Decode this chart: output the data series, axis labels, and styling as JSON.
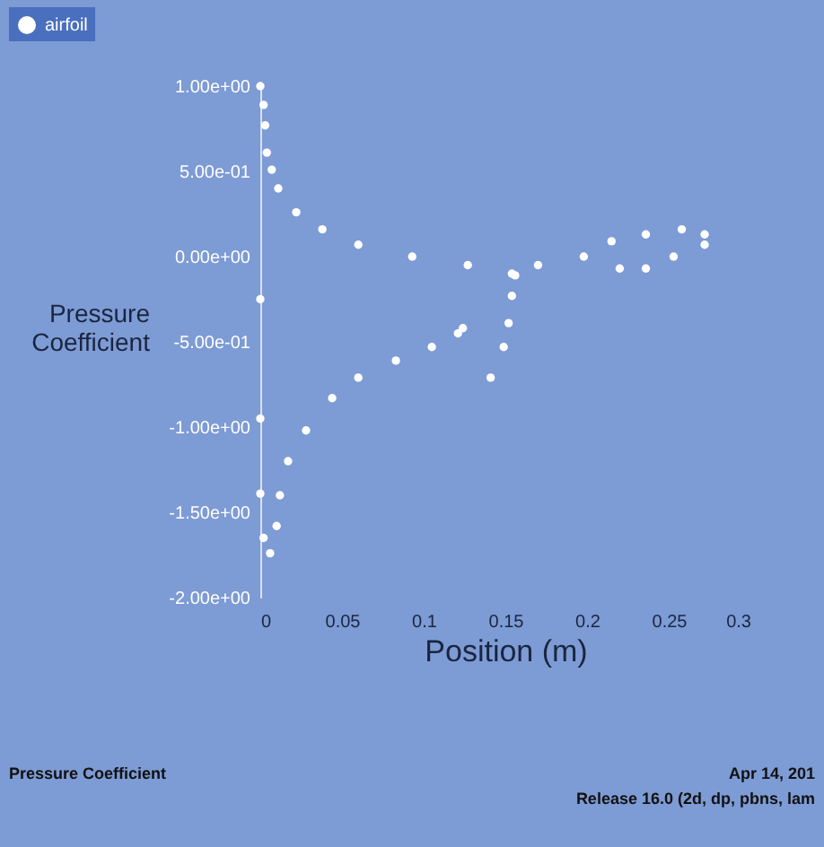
{
  "chart_data": {
    "type": "scatter",
    "xlabel": "Position (m)",
    "ylabel": "Pressure Coefficient",
    "annotations": [
      "Pressure Coefficient",
      "Apr 14, 201",
      "Release 16.0 (2d, dp, pbns, lam"
    ],
    "xlim": [
      0,
      0.3
    ],
    "ylim": [
      -2,
      1
    ],
    "xticks": [
      0,
      0.05,
      0.1,
      0.15,
      0.2,
      0.25,
      0.3
    ],
    "yticks": [
      {
        "value": 1,
        "label": "1.00e+00"
      },
      {
        "value": 0.5,
        "label": "5.00e-01"
      },
      {
        "value": 0,
        "label": "0.00e+00"
      },
      {
        "value": -0.5,
        "label": "-5.00e-01"
      },
      {
        "value": -1,
        "label": "-1.00e+00"
      },
      {
        "value": -1.5,
        "label": "-1.50e+00"
      },
      {
        "value": -2,
        "label": "-2.00e+00"
      }
    ],
    "grid": false,
    "legend": "top left",
    "marker": "circle",
    "series": [
      {
        "name": "airfoil",
        "color": "#ffffff",
        "x": [
          0,
          0.002,
          0.003,
          0.004,
          0.007,
          0.011,
          0.022,
          0.038,
          0.06,
          0.093,
          0.127,
          0.154,
          0.17,
          0.198,
          0.215,
          0.236,
          0.258,
          0.272,
          0.22,
          0.236,
          0.253,
          0.272,
          0,
          0,
          0,
          0.002,
          0.006,
          0.01,
          0.012,
          0.017,
          0.028,
          0.044,
          0.06,
          0.083,
          0.105,
          0.121,
          0.124,
          0.141,
          0.149,
          0.152,
          0.154,
          0.156
        ],
        "values": [
          1.0,
          0.89,
          0.77,
          0.61,
          0.51,
          0.4,
          0.26,
          0.16,
          0.07,
          0.0,
          -0.05,
          -0.1,
          -0.05,
          0.0,
          0.09,
          0.13,
          0.16,
          0.13,
          -0.07,
          -0.07,
          0.0,
          0.07,
          -0.25,
          -0.95,
          -1.39,
          -1.65,
          -1.74,
          -1.58,
          -1.4,
          -1.2,
          -1.02,
          -0.83,
          -0.71,
          -0.61,
          -0.53,
          -0.45,
          -0.42,
          -0.71,
          -0.53,
          -0.39,
          -0.23,
          -0.11
        ]
      }
    ]
  }
}
